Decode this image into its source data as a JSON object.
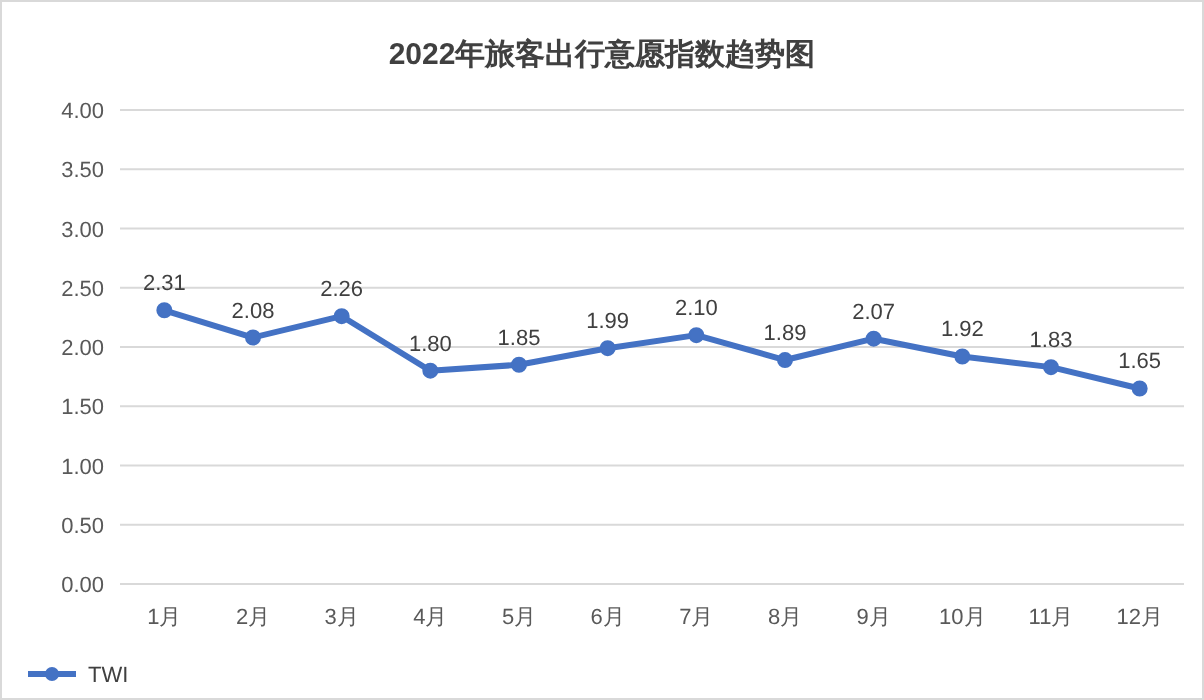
{
  "chart_data": {
    "type": "line",
    "title": "2022年旅客出行意愿指数趋势图",
    "categories": [
      "1月",
      "2月",
      "3月",
      "4月",
      "5月",
      "6月",
      "7月",
      "8月",
      "9月",
      "10月",
      "11月",
      "12月"
    ],
    "series": [
      {
        "name": "TWI",
        "color": "#4472c4",
        "values": [
          2.31,
          2.08,
          2.26,
          1.8,
          1.85,
          1.99,
          2.1,
          1.89,
          2.07,
          1.92,
          1.83,
          1.65
        ],
        "value_labels": [
          "2.31",
          "2.08",
          "2.26",
          "1.80",
          "1.85",
          "1.99",
          "2.10",
          "1.89",
          "2.07",
          "1.92",
          "1.83",
          "1.65"
        ]
      }
    ],
    "ylim": [
      0,
      4
    ],
    "yticks": [
      {
        "value": 0,
        "label": "0.00"
      },
      {
        "value": 0.5,
        "label": "0.50"
      },
      {
        "value": 1,
        "label": "1.00"
      },
      {
        "value": 1.5,
        "label": "1.50"
      },
      {
        "value": 2,
        "label": "2.00"
      },
      {
        "value": 2.5,
        "label": "2.50"
      },
      {
        "value": 3,
        "label": "3.00"
      },
      {
        "value": 3.5,
        "label": "3.50"
      },
      {
        "value": 4,
        "label": "4.00"
      }
    ],
    "grid": "y",
    "legend": "bottom left",
    "marker": "circle",
    "line_style": "solid"
  }
}
